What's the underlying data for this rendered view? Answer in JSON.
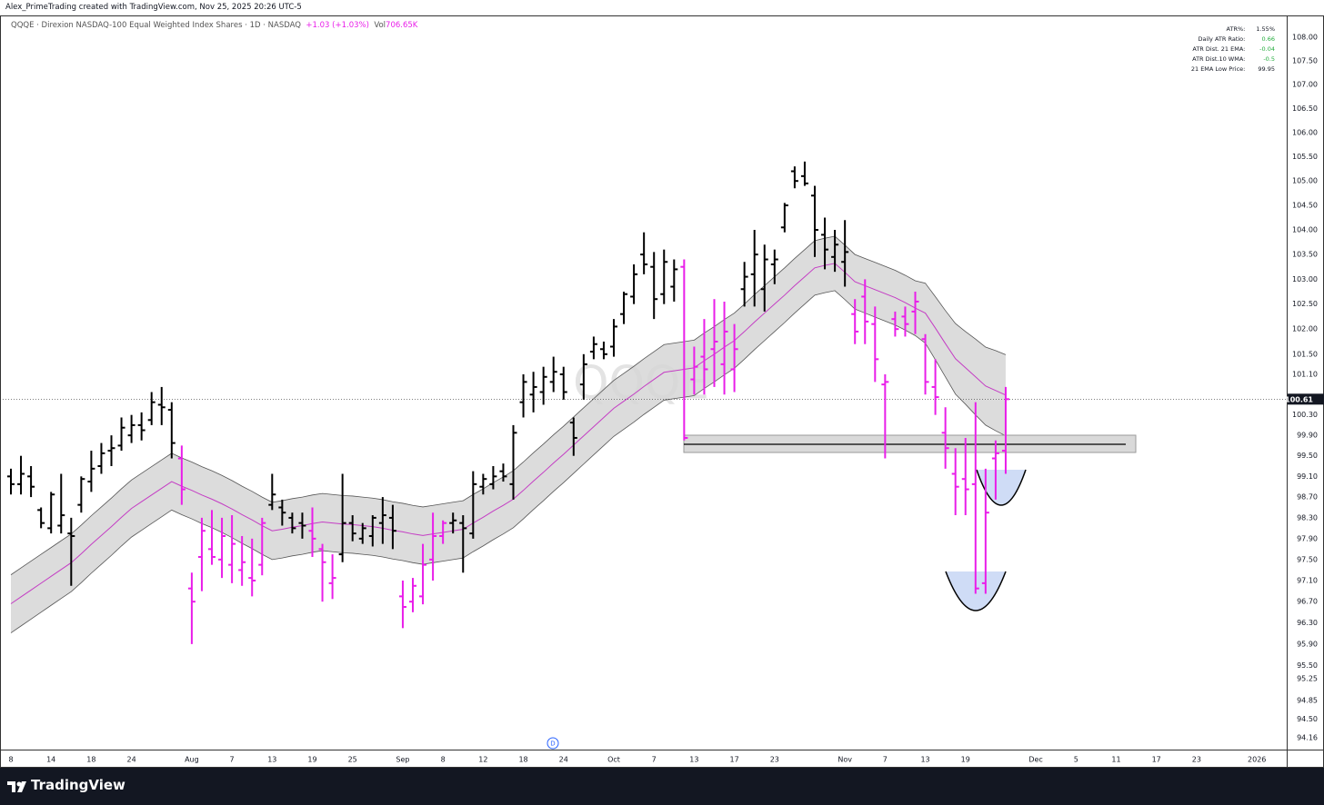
{
  "header": {
    "author_line": "Alex_PrimeTrading created with TradingView.com, Nov 25, 2025 20:26 UTC-5",
    "symbol": "QQQE · Direxion NASDAQ-100 Equal Weighted Index Shares · 1D · NASDAQ",
    "change": "+1.03 (+1.03%)",
    "vol_label": "Vol",
    "volume": "706.65K"
  },
  "stats": [
    {
      "label": "ATR%:",
      "value": "1.55%",
      "color": "#131722"
    },
    {
      "label": "Daily ATR Ratio:",
      "value": "0.66",
      "color": "#22ab3c"
    },
    {
      "label": "ATR Dist. 21 EMA:",
      "value": "-0.04",
      "color": "#22ab3c"
    },
    {
      "label": "ATR Dist.10 WMA:",
      "value": "-0.5",
      "color": "#22ab3c"
    },
    {
      "label": "21 EMA Low Price:",
      "value": "99.95",
      "color": "#131722"
    }
  ],
  "event_marker": "D",
  "footer": {
    "brand": "TradingView"
  },
  "chart_data": {
    "type": "ohlc",
    "watermark": "QQQE",
    "log_scale": true,
    "grid": false,
    "ylim": [
      93.94,
      108.15
    ],
    "yticks": [
      {
        "value": 108,
        "label": "108.00"
      },
      {
        "value": 107.5,
        "label": "107.50"
      },
      {
        "value": 107,
        "label": "107.00"
      },
      {
        "value": 106.5,
        "label": "106.50"
      },
      {
        "value": 106,
        "label": "106.00"
      },
      {
        "value": 105.5,
        "label": "105.50"
      },
      {
        "value": 105,
        "label": "105.00"
      },
      {
        "value": 104.5,
        "label": "104.50"
      },
      {
        "value": 104,
        "label": "104.00"
      },
      {
        "value": 103.5,
        "label": "103.50"
      },
      {
        "value": 103,
        "label": "103.00"
      },
      {
        "value": 102.5,
        "label": "102.50"
      },
      {
        "value": 102,
        "label": "102.00"
      },
      {
        "value": 101.5,
        "label": "101.50"
      },
      {
        "value": 101.1,
        "label": "101.10"
      },
      {
        "value": 100.3,
        "label": "100.30"
      },
      {
        "value": 99.9,
        "label": "99.90"
      },
      {
        "value": 99.5,
        "label": "99.50"
      },
      {
        "value": 99.1,
        "label": "99.10"
      },
      {
        "value": 98.7,
        "label": "98.70"
      },
      {
        "value": 98.3,
        "label": "98.30"
      },
      {
        "value": 97.9,
        "label": "97.90"
      },
      {
        "value": 97.5,
        "label": "97.50"
      },
      {
        "value": 97.1,
        "label": "97.10"
      },
      {
        "value": 96.7,
        "label": "96.70"
      },
      {
        "value": 96.3,
        "label": "96.30"
      },
      {
        "value": 95.9,
        "label": "95.90"
      },
      {
        "value": 95.5,
        "label": "95.50"
      },
      {
        "value": 95.25,
        "label": "95.25"
      },
      {
        "value": 94.85,
        "label": "94.85"
      },
      {
        "value": 94.5,
        "label": "94.50"
      },
      {
        "value": 94.16,
        "label": "94.16"
      }
    ],
    "categories": [
      "8",
      null,
      null,
      null,
      "14",
      null,
      null,
      null,
      "18",
      null,
      null,
      null,
      "24",
      null,
      null,
      null,
      null,
      null,
      "Aug",
      null,
      null,
      null,
      "7",
      null,
      null,
      null,
      "13",
      null,
      null,
      null,
      "19",
      null,
      null,
      null,
      "25",
      null,
      null,
      null,
      null,
      "Sep",
      null,
      null,
      null,
      "8",
      null,
      null,
      null,
      "12",
      null,
      null,
      null,
      "18",
      null,
      null,
      null,
      "24",
      null,
      null,
      null,
      null,
      "Oct",
      null,
      null,
      null,
      "7",
      null,
      null,
      null,
      "13",
      null,
      null,
      null,
      "17",
      null,
      null,
      null,
      "23",
      null,
      null,
      null,
      null,
      null,
      null,
      "Nov",
      null,
      null,
      null,
      "7",
      null,
      null,
      null,
      "13",
      null,
      null,
      null,
      "19",
      null,
      null,
      null,
      null,
      null,
      null,
      "Dec",
      null,
      null,
      null,
      "5",
      null,
      null,
      null,
      "11",
      null,
      null,
      null,
      "17",
      null,
      null,
      null,
      "23",
      null,
      null,
      null,
      null,
      null,
      "2026"
    ],
    "open": [
      99.1,
      98.95,
      99.1,
      98.45,
      98.1,
      98.15,
      98.0,
      98.55,
      99.0,
      99.3,
      99.6,
      99.7,
      99.9,
      100.1,
      100.2,
      100.5,
      100.4,
      99.45,
      96.95,
      97.55,
      97.7,
      97.5,
      97.4,
      97.3,
      97.15,
      97.4,
      98.55,
      98.5,
      98.3,
      98.2,
      98.05,
      97.7,
      97.05,
      97.6,
      98.2,
      97.9,
      97.95,
      98.2,
      98.3,
      96.8,
      96.7,
      96.8,
      97.5,
      97.95,
      98.2,
      98.2,
      98.0,
      98.9,
      98.95,
      99.2,
      98.95,
      100.55,
      100.7,
      100.75,
      100.95,
      101.1,
      100.15,
      100.9,
      101.55,
      101.6,
      101.65,
      102.3,
      102.65,
      103.5,
      103.25,
      102.7,
      102.85,
      103.25,
      101.0,
      101.45,
      101.6,
      101.3,
      101.2,
      102.8,
      103.1,
      102.8,
      103.3,
      104.05,
      105.2,
      105.1,
      104.7,
      103.9,
      103.45,
      103.35,
      102.3,
      102.65,
      102.1,
      100.9,
      102.2,
      102.25,
      102.35,
      101.8,
      100.85,
      99.95,
      99.15,
      99.05,
      98.95,
      97.05,
      99.45,
      99.6,
      null,
      null,
      null,
      null,
      null,
      null,
      null,
      null,
      null,
      null,
      null,
      null,
      null,
      null,
      null,
      null,
      null,
      null,
      null,
      null,
      null,
      null,
      null,
      null,
      null
    ],
    "high": [
      99.25,
      99.5,
      99.3,
      98.5,
      98.8,
      99.15,
      98.3,
      99.1,
      99.6,
      99.75,
      99.9,
      100.25,
      100.3,
      100.35,
      100.75,
      100.85,
      100.55,
      99.7,
      97.25,
      98.3,
      98.45,
      98.3,
      98.35,
      97.95,
      97.9,
      98.3,
      99.15,
      98.65,
      98.4,
      98.4,
      98.5,
      97.8,
      97.6,
      99.15,
      98.35,
      98.2,
      98.35,
      98.7,
      98.55,
      97.1,
      97.15,
      97.8,
      98.4,
      98.25,
      98.4,
      98.35,
      99.2,
      99.15,
      99.3,
      99.35,
      100.1,
      101.1,
      101.15,
      101.25,
      101.45,
      101.25,
      100.25,
      101.5,
      101.85,
      101.75,
      102.2,
      102.75,
      103.3,
      103.95,
      103.55,
      103.6,
      103.4,
      103.4,
      101.65,
      102.2,
      102.6,
      102.55,
      102.1,
      103.35,
      104.0,
      103.7,
      103.6,
      104.55,
      105.3,
      105.4,
      104.9,
      104.25,
      104.0,
      104.2,
      102.6,
      103.0,
      102.45,
      101.1,
      102.35,
      102.45,
      102.75,
      101.9,
      101.4,
      100.45,
      99.65,
      99.85,
      100.55,
      99.25,
      99.8,
      100.85,
      null,
      null,
      null,
      null,
      null,
      null,
      null,
      null,
      null,
      null,
      null,
      null,
      null,
      null,
      null,
      null,
      null,
      null,
      null,
      null,
      null,
      null,
      null,
      null,
      null
    ],
    "low": [
      98.75,
      98.75,
      98.7,
      98.1,
      98.0,
      98.0,
      97.0,
      98.4,
      98.8,
      99.15,
      99.3,
      99.6,
      99.75,
      99.8,
      100.1,
      100.1,
      99.45,
      98.55,
      95.9,
      96.9,
      97.4,
      97.15,
      97.05,
      97.0,
      96.8,
      97.2,
      98.45,
      98.15,
      98.0,
      97.9,
      97.55,
      96.7,
      96.75,
      97.45,
      97.85,
      97.8,
      97.75,
      97.8,
      97.7,
      96.2,
      96.5,
      96.65,
      97.1,
      97.8,
      98.0,
      97.25,
      97.9,
      98.75,
      98.85,
      99.0,
      98.65,
      100.25,
      100.35,
      100.5,
      100.75,
      100.6,
      99.5,
      100.6,
      101.4,
      101.4,
      101.45,
      102.1,
      102.5,
      103.1,
      102.2,
      102.5,
      102.55,
      99.8,
      100.7,
      100.7,
      100.85,
      100.7,
      100.75,
      102.45,
      102.45,
      102.35,
      102.9,
      103.95,
      104.85,
      104.9,
      103.45,
      103.2,
      103.15,
      102.85,
      101.7,
      101.7,
      100.95,
      99.45,
      101.85,
      101.85,
      101.9,
      100.7,
      100.3,
      99.25,
      98.35,
      98.35,
      96.85,
      96.85,
      98.65,
      99.15,
      null,
      null,
      null,
      null,
      null,
      null,
      null,
      null,
      null,
      null,
      null,
      null,
      null,
      null,
      null,
      null,
      null,
      null,
      null,
      null,
      null,
      null,
      null,
      null,
      null
    ],
    "close": [
      98.95,
      99.15,
      98.9,
      98.2,
      98.75,
      98.35,
      97.95,
      99.05,
      99.25,
      99.55,
      99.65,
      100.05,
      100.1,
      100.0,
      100.55,
      100.45,
      99.75,
      98.85,
      96.7,
      98.05,
      97.55,
      97.95,
      97.8,
      97.45,
      97.1,
      98.2,
      98.75,
      98.4,
      98.1,
      98.15,
      97.9,
      97.45,
      97.15,
      98.2,
      98.0,
      98.1,
      98.3,
      98.35,
      98.05,
      96.6,
      97.0,
      97.4,
      97.95,
      98.2,
      98.25,
      98.1,
      98.95,
      99.05,
      99.1,
      99.1,
      99.95,
      100.95,
      100.85,
      101.05,
      101.15,
      100.75,
      99.85,
      101.3,
      101.7,
      101.5,
      102.05,
      102.7,
      103.1,
      103.3,
      102.6,
      103.35,
      103.2,
      99.85,
      101.25,
      101.2,
      101.75,
      101.95,
      101.6,
      103.05,
      103.5,
      103.4,
      103.4,
      104.5,
      105.0,
      104.95,
      104.0,
      103.6,
      103.7,
      103.55,
      101.95,
      102.15,
      101.4,
      100.95,
      102.0,
      102.1,
      102.55,
      100.95,
      100.65,
      99.65,
      98.9,
      98.85,
      96.95,
      98.4,
      99.55,
      100.61,
      null,
      null,
      null,
      null,
      null,
      null,
      null,
      null,
      null,
      null,
      null,
      null,
      null,
      null,
      null,
      null,
      null,
      null,
      null,
      null,
      null,
      null,
      null,
      null,
      null
    ],
    "bar_colors": [
      "#000000",
      "#000000",
      "#000000",
      "#000000",
      "#000000",
      "#000000",
      "#000000",
      "#000000",
      "#000000",
      "#000000",
      "#000000",
      "#000000",
      "#000000",
      "#000000",
      "#000000",
      "#000000",
      "#000000",
      "#e91ee9",
      "#e91ee9",
      "#e91ee9",
      "#e91ee9",
      "#e91ee9",
      "#e91ee9",
      "#e91ee9",
      "#e91ee9",
      "#e91ee9",
      "#000000",
      "#000000",
      "#000000",
      "#000000",
      "#e91ee9",
      "#e91ee9",
      "#e91ee9",
      "#000000",
      "#000000",
      "#000000",
      "#000000",
      "#000000",
      "#000000",
      "#e91ee9",
      "#e91ee9",
      "#e91ee9",
      "#e91ee9",
      "#e91ee9",
      "#000000",
      "#000000",
      "#000000",
      "#000000",
      "#000000",
      "#000000",
      "#000000",
      "#000000",
      "#000000",
      "#000000",
      "#000000",
      "#000000",
      "#000000",
      "#000000",
      "#000000",
      "#000000",
      "#000000",
      "#000000",
      "#000000",
      "#000000",
      "#000000",
      "#000000",
      "#000000",
      "#e91ee9",
      "#e91ee9",
      "#e91ee9",
      "#e91ee9",
      "#e91ee9",
      "#e91ee9",
      "#000000",
      "#000000",
      "#000000",
      "#000000",
      "#000000",
      "#000000",
      "#000000",
      "#000000",
      "#000000",
      "#000000",
      "#000000",
      "#e91ee9",
      "#e91ee9",
      "#e91ee9",
      "#e91ee9",
      "#e91ee9",
      "#e91ee9",
      "#e91ee9",
      "#e91ee9",
      "#e91ee9",
      "#e91ee9",
      "#e91ee9",
      "#e91ee9",
      "#e91ee9",
      "#e91ee9",
      "#e91ee9",
      "#e91ee9",
      null,
      null,
      null,
      null,
      null,
      null,
      null,
      null,
      null,
      null,
      null,
      null,
      null,
      null,
      null,
      null,
      null,
      null,
      null,
      null,
      null,
      null,
      null,
      null,
      null
    ],
    "ema": [
      96.66,
      96.79,
      96.92,
      97.05,
      97.18,
      97.31,
      97.44,
      97.61,
      97.79,
      97.96,
      98.13,
      98.31,
      98.48,
      98.61,
      98.74,
      98.87,
      99.0,
      98.91,
      98.83,
      98.74,
      98.66,
      98.57,
      98.47,
      98.36,
      98.26,
      98.15,
      98.05,
      98.08,
      98.12,
      98.15,
      98.19,
      98.22,
      98.2,
      98.18,
      98.17,
      98.15,
      98.13,
      98.1,
      98.06,
      98.03,
      97.99,
      97.96,
      97.99,
      98.02,
      98.05,
      98.08,
      98.2,
      98.31,
      98.43,
      98.54,
      98.66,
      98.83,
      99.01,
      99.18,
      99.36,
      99.53,
      99.71,
      99.89,
      100.07,
      100.25,
      100.43,
      100.57,
      100.71,
      100.86,
      101.0,
      101.14,
      101.17,
      101.2,
      101.23,
      101.37,
      101.5,
      101.64,
      101.77,
      101.95,
      102.14,
      102.32,
      102.5,
      102.68,
      102.87,
      103.05,
      103.23,
      103.28,
      103.32,
      103.14,
      102.95,
      102.87,
      102.79,
      102.71,
      102.63,
      102.53,
      102.42,
      102.32,
      102.02,
      101.71,
      101.41,
      101.23,
      101.05,
      100.87,
      100.78,
      100.69,
      null,
      null,
      null,
      null,
      null,
      null,
      null,
      null,
      null,
      null,
      null,
      null,
      null,
      null,
      null,
      null,
      null,
      null,
      null,
      null,
      null,
      null,
      null,
      null,
      null
    ],
    "ema_color": "#c43dc4",
    "band_upper": [
      97.21,
      97.34,
      97.47,
      97.6,
      97.73,
      97.86,
      97.99,
      98.16,
      98.34,
      98.51,
      98.68,
      98.86,
      99.03,
      99.16,
      99.29,
      99.42,
      99.55,
      99.46,
      99.38,
      99.29,
      99.21,
      99.12,
      99.02,
      98.91,
      98.81,
      98.7,
      98.6,
      98.63,
      98.67,
      98.7,
      98.74,
      98.77,
      98.75,
      98.73,
      98.72,
      98.7,
      98.68,
      98.65,
      98.61,
      98.58,
      98.54,
      98.51,
      98.54,
      98.57,
      98.6,
      98.63,
      98.75,
      98.86,
      98.98,
      99.09,
      99.21,
      99.38,
      99.56,
      99.73,
      99.91,
      100.08,
      100.26,
      100.44,
      100.62,
      100.8,
      100.98,
      101.12,
      101.26,
      101.41,
      101.55,
      101.69,
      101.72,
      101.75,
      101.78,
      101.92,
      102.05,
      102.19,
      102.32,
      102.5,
      102.69,
      102.87,
      103.05,
      103.23,
      103.42,
      103.6,
      103.78,
      103.83,
      103.87,
      103.69,
      103.5,
      103.42,
      103.34,
      103.26,
      103.18,
      103.08,
      102.97,
      102.92,
      102.65,
      102.37,
      102.11,
      101.95,
      101.8,
      101.64,
      101.57,
      101.49,
      null,
      null,
      null,
      null,
      null,
      null,
      null,
      null,
      null,
      null,
      null,
      null,
      null,
      null,
      null,
      null,
      null,
      null,
      null,
      null,
      null,
      null,
      null,
      null,
      null
    ],
    "band_lower": [
      96.11,
      96.24,
      96.37,
      96.5,
      96.63,
      96.76,
      96.89,
      97.06,
      97.24,
      97.41,
      97.58,
      97.76,
      97.93,
      98.06,
      98.19,
      98.32,
      98.45,
      98.36,
      98.28,
      98.19,
      98.11,
      98.02,
      97.92,
      97.81,
      97.71,
      97.6,
      97.5,
      97.53,
      97.57,
      97.6,
      97.64,
      97.67,
      97.65,
      97.63,
      97.62,
      97.6,
      97.58,
      97.55,
      97.51,
      97.48,
      97.44,
      97.41,
      97.44,
      97.47,
      97.5,
      97.53,
      97.65,
      97.76,
      97.88,
      97.99,
      98.11,
      98.28,
      98.46,
      98.63,
      98.81,
      98.98,
      99.16,
      99.34,
      99.52,
      99.7,
      99.88,
      100.02,
      100.16,
      100.31,
      100.45,
      100.59,
      100.62,
      100.65,
      100.68,
      100.82,
      100.95,
      101.09,
      101.22,
      101.4,
      101.59,
      101.77,
      101.95,
      102.13,
      102.32,
      102.5,
      102.68,
      102.73,
      102.77,
      102.59,
      102.4,
      102.32,
      102.24,
      102.16,
      102.08,
      101.98,
      101.87,
      101.72,
      101.39,
      101.05,
      100.71,
      100.51,
      100.3,
      100.1,
      99.99,
      99.89,
      null,
      null,
      null,
      null,
      null,
      null,
      null,
      null,
      null,
      null,
      null,
      null,
      null,
      null,
      null,
      null,
      null,
      null,
      null,
      null,
      null,
      null,
      null,
      null,
      null
    ],
    "band_color": "#d6d6d6"
  }
}
